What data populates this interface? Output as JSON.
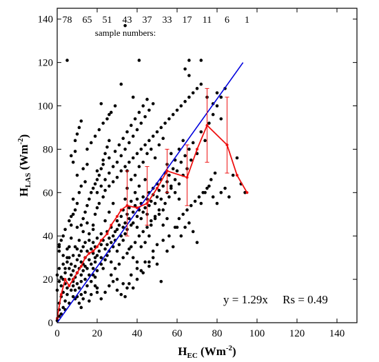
{
  "chart_data": {
    "type": "scatter",
    "xlim": [
      0,
      150
    ],
    "ylim": [
      0,
      145
    ],
    "xticks": [
      0,
      20,
      40,
      60,
      80,
      100,
      120,
      140
    ],
    "yticks": [
      0,
      20,
      40,
      60,
      80,
      100,
      120,
      140
    ],
    "grid": false,
    "xlabel": {
      "main": "H",
      "sub": "EC",
      "unit": " (Wm",
      "exp": "-2",
      "close": ")"
    },
    "ylabel": {
      "main": "H",
      "sub": "LAS",
      "unit": " (Wm",
      "exp": "-2",
      "close": ")"
    },
    "annotation": "y = 1.29x     Rs = 0.49",
    "sample_label": "sample numbers:",
    "sample_counts": [
      {
        "x": 5,
        "n": "78"
      },
      {
        "x": 15,
        "n": "65"
      },
      {
        "x": 25,
        "n": "51"
      },
      {
        "x": 35,
        "n": "43"
      },
      {
        "x": 45,
        "n": "37"
      },
      {
        "x": 55,
        "n": "33"
      },
      {
        "x": 65,
        "n": "17"
      },
      {
        "x": 75,
        "n": "11"
      },
      {
        "x": 85,
        "n": "6"
      },
      {
        "x": 95,
        "n": "1"
      }
    ],
    "fit_line": {
      "slope": 1.29,
      "x": [
        0,
        93
      ],
      "color": "#0000dd"
    },
    "bin_means": {
      "color": "#ee1111",
      "x": [
        0,
        2,
        4,
        6,
        8,
        10,
        12,
        14,
        16,
        18,
        20,
        22,
        25,
        27,
        30,
        32,
        35,
        40,
        45,
        50,
        55,
        65,
        70,
        75,
        85,
        90,
        95
      ],
      "y": [
        2,
        13,
        20,
        17,
        20,
        23,
        26,
        30,
        32,
        33,
        35,
        38,
        41,
        45,
        49,
        52,
        54,
        53,
        55,
        62,
        70,
        67,
        80,
        91,
        82,
        68,
        60
      ]
    },
    "error_bars": [
      {
        "x": 35,
        "low": 40,
        "high": 70
      },
      {
        "x": 45,
        "low": 45,
        "high": 72
      },
      {
        "x": 55,
        "low": 60,
        "high": 80
      },
      {
        "x": 65,
        "low": 54,
        "high": 82
      },
      {
        "x": 75,
        "low": 74,
        "high": 108
      },
      {
        "x": 85,
        "low": 69,
        "high": 104
      }
    ],
    "points": [
      [
        0,
        1
      ],
      [
        1,
        3
      ],
      [
        1,
        6
      ],
      [
        1,
        9
      ],
      [
        2,
        12
      ],
      [
        2,
        17
      ],
      [
        2,
        21
      ],
      [
        3,
        27
      ],
      [
        3,
        31
      ],
      [
        1,
        33
      ],
      [
        1,
        36
      ],
      [
        1,
        25
      ],
      [
        1,
        19
      ],
      [
        0,
        15
      ],
      [
        0,
        22
      ],
      [
        2,
        4
      ],
      [
        3,
        7
      ],
      [
        3,
        14
      ],
      [
        4,
        10
      ],
      [
        4,
        18
      ],
      [
        4,
        23
      ],
      [
        4,
        6
      ],
      [
        5,
        28
      ],
      [
        5,
        34
      ],
      [
        5,
        13
      ],
      [
        5,
        16
      ],
      [
        6,
        20
      ],
      [
        6,
        25
      ],
      [
        6,
        9
      ],
      [
        6,
        30
      ],
      [
        7,
        15
      ],
      [
        7,
        22
      ],
      [
        7,
        27
      ],
      [
        7,
        39
      ],
      [
        8,
        17
      ],
      [
        8,
        12
      ],
      [
        8,
        24
      ],
      [
        8,
        31
      ],
      [
        8,
        19
      ],
      [
        8,
        20
      ],
      [
        9,
        26
      ],
      [
        9,
        35
      ],
      [
        9,
        21
      ],
      [
        9,
        11
      ],
      [
        10,
        29
      ],
      [
        10,
        23
      ],
      [
        10,
        34
      ],
      [
        10,
        18
      ],
      [
        10,
        44
      ],
      [
        11,
        25
      ],
      [
        11,
        31
      ],
      [
        11,
        16
      ],
      [
        11,
        38
      ],
      [
        12,
        22
      ],
      [
        12,
        28
      ],
      [
        12,
        33
      ],
      [
        12,
        19
      ],
      [
        12,
        13
      ],
      [
        13,
        27
      ],
      [
        13,
        35
      ],
      [
        13,
        42
      ],
      [
        13,
        24
      ],
      [
        14,
        30
      ],
      [
        14,
        20
      ],
      [
        14,
        37
      ],
      [
        14,
        26
      ],
      [
        15,
        33
      ],
      [
        15,
        25
      ],
      [
        15,
        17
      ],
      [
        15,
        46
      ],
      [
        16,
        29
      ],
      [
        16,
        38
      ],
      [
        16,
        22
      ],
      [
        16,
        41
      ],
      [
        17,
        27
      ],
      [
        17,
        34
      ],
      [
        17,
        19
      ],
      [
        18,
        32
      ],
      [
        18,
        25
      ],
      [
        18,
        43
      ],
      [
        18,
        37
      ],
      [
        19,
        28
      ],
      [
        19,
        35
      ],
      [
        19,
        21
      ],
      [
        19,
        30
      ],
      [
        20,
        31
      ],
      [
        20,
        39
      ],
      [
        20,
        24
      ],
      [
        20,
        16
      ],
      [
        21,
        33
      ],
      [
        22,
        27
      ],
      [
        22,
        36
      ],
      [
        22,
        41
      ],
      [
        22,
        30
      ],
      [
        23,
        38
      ],
      [
        23,
        25
      ],
      [
        24,
        34
      ],
      [
        24,
        47
      ],
      [
        24,
        29
      ],
      [
        25,
        36
      ],
      [
        25,
        42
      ],
      [
        25,
        31
      ],
      [
        26,
        39
      ],
      [
        26,
        33
      ],
      [
        26,
        51
      ],
      [
        27,
        37
      ],
      [
        27,
        44
      ],
      [
        27,
        28
      ],
      [
        28,
        40
      ],
      [
        28,
        35
      ],
      [
        28,
        55
      ],
      [
        29,
        42
      ],
      [
        29,
        38
      ],
      [
        30,
        47
      ],
      [
        30,
        33
      ],
      [
        30,
        43
      ],
      [
        31,
        45
      ],
      [
        31,
        36
      ],
      [
        32,
        49
      ],
      [
        32,
        40
      ],
      [
        33,
        52
      ],
      [
        33,
        44
      ],
      [
        33,
        38
      ],
      [
        34,
        46
      ],
      [
        34,
        57
      ],
      [
        34,
        41
      ],
      [
        35,
        50
      ],
      [
        35,
        43
      ],
      [
        35,
        62
      ],
      [
        36,
        48
      ],
      [
        36,
        53
      ],
      [
        37,
        45
      ],
      [
        37,
        56
      ],
      [
        38,
        51
      ],
      [
        38,
        46
      ],
      [
        39,
        54
      ],
      [
        39,
        60
      ],
      [
        40,
        49
      ],
      [
        40,
        57
      ],
      [
        40,
        44
      ],
      [
        41,
        52
      ],
      [
        41,
        63
      ],
      [
        42,
        55
      ],
      [
        42,
        48
      ],
      [
        43,
        58
      ],
      [
        43,
        51
      ],
      [
        44,
        53
      ],
      [
        44,
        66
      ],
      [
        45,
        57
      ],
      [
        45,
        50
      ],
      [
        46,
        60
      ],
      [
        46,
        54
      ],
      [
        47,
        56
      ],
      [
        48,
        62
      ],
      [
        48,
        59
      ],
      [
        49,
        55
      ],
      [
        50,
        64
      ],
      [
        50,
        58
      ],
      [
        51,
        61
      ],
      [
        52,
        66
      ],
      [
        52,
        57
      ],
      [
        53,
        63
      ],
      [
        54,
        69
      ],
      [
        55,
        65
      ],
      [
        55,
        60
      ],
      [
        56,
        68
      ],
      [
        57,
        63
      ],
      [
        58,
        71
      ],
      [
        59,
        66
      ],
      [
        60,
        70
      ],
      [
        61,
        64
      ],
      [
        62,
        74
      ],
      [
        63,
        68
      ],
      [
        64,
        77
      ],
      [
        65,
        71
      ],
      [
        66,
        80
      ],
      [
        67,
        75
      ],
      [
        68,
        83
      ],
      [
        70,
        78
      ],
      [
        72,
        88
      ],
      [
        74,
        84
      ],
      [
        76,
        92
      ],
      [
        78,
        96
      ],
      [
        80,
        100
      ],
      [
        82,
        104
      ],
      [
        84,
        108
      ],
      [
        1,
        35
      ],
      [
        2,
        38
      ],
      [
        3,
        40
      ],
      [
        4,
        43
      ],
      [
        6,
        47
      ],
      [
        7,
        49
      ],
      [
        9,
        52
      ],
      [
        10,
        55
      ],
      [
        8,
        57
      ],
      [
        11,
        60
      ],
      [
        12,
        63
      ],
      [
        14,
        65
      ],
      [
        10,
        68
      ],
      [
        13,
        71
      ],
      [
        15,
        73
      ],
      [
        8,
        74
      ],
      [
        9,
        79
      ],
      [
        9,
        84
      ],
      [
        10,
        87
      ],
      [
        11,
        90
      ],
      [
        12,
        93
      ],
      [
        7,
        77
      ],
      [
        15,
        80
      ],
      [
        17,
        83
      ],
      [
        19,
        86
      ],
      [
        21,
        89
      ],
      [
        23,
        92
      ],
      [
        25,
        94
      ],
      [
        27,
        97
      ],
      [
        29,
        100
      ],
      [
        20,
        60
      ],
      [
        22,
        63
      ],
      [
        24,
        66
      ],
      [
        26,
        69
      ],
      [
        28,
        72
      ],
      [
        30,
        74
      ],
      [
        32,
        77
      ],
      [
        34,
        80
      ],
      [
        36,
        83
      ],
      [
        38,
        86
      ],
      [
        40,
        89
      ],
      [
        42,
        92
      ],
      [
        44,
        95
      ],
      [
        46,
        98
      ],
      [
        48,
        101
      ],
      [
        20,
        70
      ],
      [
        23,
        73
      ],
      [
        26,
        76
      ],
      [
        29,
        79
      ],
      [
        31,
        82
      ],
      [
        33,
        85
      ],
      [
        35,
        88
      ],
      [
        37,
        91
      ],
      [
        39,
        94
      ],
      [
        41,
        97
      ],
      [
        43,
        100
      ],
      [
        45,
        103
      ],
      [
        18,
        45
      ],
      [
        19,
        50
      ],
      [
        20,
        53
      ],
      [
        21,
        55
      ],
      [
        23,
        58
      ],
      [
        24,
        61
      ],
      [
        26,
        63
      ],
      [
        28,
        65
      ],
      [
        30,
        67
      ],
      [
        32,
        70
      ],
      [
        34,
        72
      ],
      [
        36,
        74
      ],
      [
        38,
        76
      ],
      [
        40,
        78
      ],
      [
        42,
        80
      ],
      [
        44,
        82
      ],
      [
        46,
        84
      ],
      [
        48,
        86
      ],
      [
        50,
        88
      ],
      [
        52,
        90
      ],
      [
        54,
        92
      ],
      [
        56,
        94
      ],
      [
        58,
        96
      ],
      [
        60,
        98
      ],
      [
        62,
        100
      ],
      [
        64,
        102
      ],
      [
        66,
        104
      ],
      [
        68,
        106
      ],
      [
        70,
        108
      ],
      [
        72,
        110
      ],
      [
        30,
        20
      ],
      [
        33,
        18
      ],
      [
        35,
        16
      ],
      [
        37,
        22
      ],
      [
        40,
        25
      ],
      [
        43,
        23
      ],
      [
        46,
        28
      ],
      [
        48,
        30
      ],
      [
        50,
        27
      ],
      [
        52,
        19
      ],
      [
        55,
        33
      ],
      [
        58,
        35
      ],
      [
        60,
        44
      ],
      [
        62,
        40
      ],
      [
        64,
        44
      ],
      [
        66,
        46
      ],
      [
        68,
        42
      ],
      [
        70,
        37
      ],
      [
        72,
        55
      ],
      [
        74,
        60
      ],
      [
        76,
        63
      ],
      [
        78,
        58
      ],
      [
        80,
        55
      ],
      [
        82,
        60
      ],
      [
        84,
        62
      ],
      [
        86,
        58
      ],
      [
        88,
        68
      ],
      [
        90,
        76
      ],
      [
        92,
        64
      ],
      [
        94,
        60
      ],
      [
        5,
        121
      ],
      [
        34,
        137
      ],
      [
        41,
        121
      ],
      [
        66,
        121
      ],
      [
        72,
        121
      ],
      [
        64,
        117
      ],
      [
        66,
        114
      ],
      [
        32,
        110
      ],
      [
        38,
        104
      ],
      [
        22,
        101
      ],
      [
        26,
        96
      ],
      [
        75,
        104
      ],
      [
        78,
        101
      ],
      [
        80,
        106
      ],
      [
        82,
        94
      ],
      [
        18,
        22
      ],
      [
        20,
        14
      ],
      [
        22,
        11
      ],
      [
        24,
        14
      ],
      [
        26,
        17
      ],
      [
        28,
        19
      ],
      [
        30,
        15
      ],
      [
        32,
        13
      ],
      [
        34,
        12
      ],
      [
        36,
        18
      ],
      [
        38,
        16
      ],
      [
        40,
        20
      ],
      [
        42,
        24
      ],
      [
        44,
        28
      ],
      [
        46,
        26
      ],
      [
        48,
        33
      ],
      [
        50,
        36
      ],
      [
        53,
        38
      ],
      [
        56,
        40
      ],
      [
        59,
        44
      ],
      [
        61,
        48
      ],
      [
        63,
        50
      ],
      [
        65,
        52
      ],
      [
        67,
        54
      ],
      [
        69,
        56
      ],
      [
        71,
        58
      ],
      [
        73,
        60
      ],
      [
        75,
        62
      ],
      [
        77,
        66
      ],
      [
        79,
        69
      ],
      [
        12,
        45
      ],
      [
        13,
        48
      ],
      [
        14,
        51
      ],
      [
        15,
        54
      ],
      [
        16,
        57
      ],
      [
        17,
        60
      ],
      [
        18,
        62
      ],
      [
        19,
        64
      ],
      [
        20,
        66
      ],
      [
        21,
        68
      ],
      [
        22,
        71
      ],
      [
        23,
        75
      ],
      [
        24,
        78
      ],
      [
        25,
        81
      ],
      [
        26,
        84
      ],
      [
        3,
        20
      ],
      [
        4,
        25
      ],
      [
        5,
        30
      ],
      [
        6,
        35
      ],
      [
        7,
        45
      ],
      [
        8,
        50
      ],
      [
        9,
        15
      ],
      [
        10,
        12
      ],
      [
        11,
        9
      ],
      [
        12,
        7
      ],
      [
        13,
        11
      ],
      [
        14,
        14
      ],
      [
        16,
        10
      ],
      [
        17,
        13
      ],
      [
        19,
        17
      ],
      [
        36,
        34
      ],
      [
        38,
        30
      ],
      [
        40,
        28
      ],
      [
        42,
        35
      ],
      [
        44,
        37
      ],
      [
        46,
        40
      ],
      [
        47,
        45
      ],
      [
        49,
        48
      ],
      [
        51,
        50
      ],
      [
        53,
        52
      ],
      [
        54,
        55
      ],
      [
        56,
        58
      ],
      [
        57,
        62
      ],
      [
        59,
        60
      ],
      [
        61,
        57
      ],
      [
        35,
        70
      ],
      [
        37,
        66
      ],
      [
        39,
        68
      ],
      [
        41,
        72
      ],
      [
        43,
        74
      ],
      [
        45,
        78
      ],
      [
        47,
        80
      ],
      [
        49,
        76
      ],
      [
        51,
        82
      ],
      [
        53,
        85
      ],
      [
        55,
        73
      ],
      [
        57,
        78
      ],
      [
        59,
        75
      ],
      [
        61,
        80
      ],
      [
        63,
        84
      ],
      [
        27,
        22
      ],
      [
        29,
        25
      ],
      [
        31,
        27
      ],
      [
        33,
        30
      ],
      [
        35,
        32
      ],
      [
        37,
        35
      ],
      [
        39,
        37
      ],
      [
        41,
        40
      ],
      [
        43,
        42
      ],
      [
        45,
        44
      ],
      [
        47,
        47
      ],
      [
        49,
        49
      ],
      [
        51,
        52
      ],
      [
        53,
        45
      ],
      [
        55,
        48
      ]
    ]
  }
}
